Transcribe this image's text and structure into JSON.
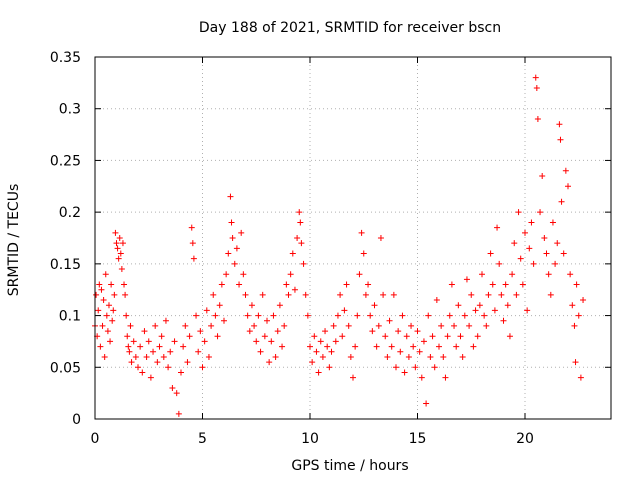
{
  "chart_data": {
    "type": "scatter",
    "title": "Day 188 of 2021, SRMTID for receiver bscn",
    "xlabel": "GPS time / hours",
    "ylabel": "SRMTID / TECUs",
    "xlim": [
      0,
      24
    ],
    "ylim": [
      0,
      0.35
    ],
    "x_ticks": [
      0,
      5,
      10,
      15,
      20
    ],
    "x_tick_labels": [
      "0",
      "5",
      "10",
      "15",
      "20"
    ],
    "y_ticks": [
      0,
      0.05,
      0.1,
      0.15,
      0.2,
      0.25,
      0.3,
      0.35
    ],
    "y_tick_labels": [
      "0",
      "0.05",
      "0.1",
      "0.15",
      "0.2",
      "0.25",
      "0.3",
      "0.35"
    ],
    "grid": true,
    "marker": "+",
    "color": "#ff0000",
    "points": [
      [
        0.0,
        0.09
      ],
      [
        0.05,
        0.12
      ],
      [
        0.1,
        0.08
      ],
      [
        0.15,
        0.105
      ],
      [
        0.2,
        0.13
      ],
      [
        0.25,
        0.07
      ],
      [
        0.3,
        0.125
      ],
      [
        0.35,
        0.09
      ],
      [
        0.4,
        0.115
      ],
      [
        0.45,
        0.06
      ],
      [
        0.5,
        0.14
      ],
      [
        0.55,
        0.1
      ],
      [
        0.6,
        0.085
      ],
      [
        0.65,
        0.11
      ],
      [
        0.7,
        0.075
      ],
      [
        0.75,
        0.13
      ],
      [
        0.8,
        0.095
      ],
      [
        0.85,
        0.105
      ],
      [
        0.9,
        0.12
      ],
      [
        0.95,
        0.18
      ],
      [
        1.0,
        0.17
      ],
      [
        1.05,
        0.165
      ],
      [
        1.1,
        0.155
      ],
      [
        1.15,
        0.175
      ],
      [
        1.2,
        0.16
      ],
      [
        1.25,
        0.145
      ],
      [
        1.3,
        0.17
      ],
      [
        1.35,
        0.13
      ],
      [
        1.4,
        0.12
      ],
      [
        1.45,
        0.1
      ],
      [
        1.5,
        0.08
      ],
      [
        1.55,
        0.07
      ],
      [
        1.6,
        0.065
      ],
      [
        1.65,
        0.09
      ],
      [
        1.7,
        0.055
      ],
      [
        1.8,
        0.075
      ],
      [
        1.9,
        0.06
      ],
      [
        2.0,
        0.05
      ],
      [
        2.1,
        0.07
      ],
      [
        2.2,
        0.045
      ],
      [
        2.3,
        0.085
      ],
      [
        2.4,
        0.06
      ],
      [
        2.5,
        0.075
      ],
      [
        2.6,
        0.04
      ],
      [
        2.7,
        0.065
      ],
      [
        2.8,
        0.09
      ],
      [
        2.9,
        0.055
      ],
      [
        3.0,
        0.07
      ],
      [
        3.1,
        0.08
      ],
      [
        3.2,
        0.06
      ],
      [
        3.3,
        0.095
      ],
      [
        3.4,
        0.05
      ],
      [
        3.5,
        0.065
      ],
      [
        3.6,
        0.03
      ],
      [
        3.7,
        0.075
      ],
      [
        3.8,
        0.025
      ],
      [
        3.9,
        0.005
      ],
      [
        4.0,
        0.045
      ],
      [
        4.1,
        0.07
      ],
      [
        4.2,
        0.09
      ],
      [
        4.3,
        0.055
      ],
      [
        4.4,
        0.08
      ],
      [
        4.5,
        0.185
      ],
      [
        4.55,
        0.17
      ],
      [
        4.6,
        0.155
      ],
      [
        4.7,
        0.1
      ],
      [
        4.8,
        0.065
      ],
      [
        4.9,
        0.085
      ],
      [
        5.0,
        0.05
      ],
      [
        5.1,
        0.075
      ],
      [
        5.2,
        0.105
      ],
      [
        5.3,
        0.06
      ],
      [
        5.4,
        0.09
      ],
      [
        5.5,
        0.12
      ],
      [
        5.6,
        0.1
      ],
      [
        5.7,
        0.08
      ],
      [
        5.8,
        0.11
      ],
      [
        5.9,
        0.13
      ],
      [
        6.0,
        0.095
      ],
      [
        6.1,
        0.14
      ],
      [
        6.2,
        0.16
      ],
      [
        6.3,
        0.215
      ],
      [
        6.35,
        0.19
      ],
      [
        6.4,
        0.175
      ],
      [
        6.5,
        0.15
      ],
      [
        6.6,
        0.165
      ],
      [
        6.7,
        0.13
      ],
      [
        6.8,
        0.18
      ],
      [
        6.9,
        0.14
      ],
      [
        7.0,
        0.12
      ],
      [
        7.1,
        0.1
      ],
      [
        7.2,
        0.085
      ],
      [
        7.3,
        0.11
      ],
      [
        7.4,
        0.09
      ],
      [
        7.5,
        0.075
      ],
      [
        7.6,
        0.1
      ],
      [
        7.7,
        0.065
      ],
      [
        7.8,
        0.12
      ],
      [
        7.9,
        0.08
      ],
      [
        8.0,
        0.095
      ],
      [
        8.1,
        0.055
      ],
      [
        8.2,
        0.075
      ],
      [
        8.3,
        0.1
      ],
      [
        8.4,
        0.06
      ],
      [
        8.5,
        0.085
      ],
      [
        8.6,
        0.11
      ],
      [
        8.7,
        0.07
      ],
      [
        8.8,
        0.09
      ],
      [
        8.9,
        0.13
      ],
      [
        9.0,
        0.12
      ],
      [
        9.1,
        0.14
      ],
      [
        9.2,
        0.16
      ],
      [
        9.3,
        0.125
      ],
      [
        9.4,
        0.175
      ],
      [
        9.5,
        0.2
      ],
      [
        9.55,
        0.19
      ],
      [
        9.6,
        0.17
      ],
      [
        9.7,
        0.15
      ],
      [
        9.8,
        0.12
      ],
      [
        9.9,
        0.1
      ],
      [
        10.0,
        0.07
      ],
      [
        10.1,
        0.055
      ],
      [
        10.2,
        0.08
      ],
      [
        10.3,
        0.065
      ],
      [
        10.4,
        0.045
      ],
      [
        10.5,
        0.075
      ],
      [
        10.6,
        0.06
      ],
      [
        10.7,
        0.085
      ],
      [
        10.8,
        0.07
      ],
      [
        10.9,
        0.05
      ],
      [
        11.0,
        0.065
      ],
      [
        11.1,
        0.09
      ],
      [
        11.2,
        0.075
      ],
      [
        11.3,
        0.1
      ],
      [
        11.4,
        0.12
      ],
      [
        11.5,
        0.08
      ],
      [
        11.6,
        0.105
      ],
      [
        11.7,
        0.13
      ],
      [
        11.8,
        0.09
      ],
      [
        11.9,
        0.06
      ],
      [
        12.0,
        0.04
      ],
      [
        12.1,
        0.07
      ],
      [
        12.2,
        0.1
      ],
      [
        12.3,
        0.14
      ],
      [
        12.4,
        0.18
      ],
      [
        12.5,
        0.16
      ],
      [
        12.6,
        0.12
      ],
      [
        12.7,
        0.13
      ],
      [
        12.8,
        0.1
      ],
      [
        12.9,
        0.085
      ],
      [
        13.0,
        0.11
      ],
      [
        13.1,
        0.07
      ],
      [
        13.2,
        0.09
      ],
      [
        13.3,
        0.175
      ],
      [
        13.4,
        0.12
      ],
      [
        13.5,
        0.08
      ],
      [
        13.6,
        0.06
      ],
      [
        13.7,
        0.095
      ],
      [
        13.8,
        0.07
      ],
      [
        13.9,
        0.12
      ],
      [
        14.0,
        0.05
      ],
      [
        14.1,
        0.085
      ],
      [
        14.2,
        0.065
      ],
      [
        14.3,
        0.1
      ],
      [
        14.4,
        0.045
      ],
      [
        14.5,
        0.08
      ],
      [
        14.6,
        0.06
      ],
      [
        14.7,
        0.09
      ],
      [
        14.8,
        0.07
      ],
      [
        14.9,
        0.05
      ],
      [
        15.0,
        0.085
      ],
      [
        15.1,
        0.065
      ],
      [
        15.2,
        0.04
      ],
      [
        15.3,
        0.075
      ],
      [
        15.4,
        0.015
      ],
      [
        15.5,
        0.1
      ],
      [
        15.6,
        0.06
      ],
      [
        15.7,
        0.08
      ],
      [
        15.8,
        0.05
      ],
      [
        15.9,
        0.115
      ],
      [
        16.0,
        0.07
      ],
      [
        16.1,
        0.09
      ],
      [
        16.2,
        0.06
      ],
      [
        16.3,
        0.04
      ],
      [
        16.4,
        0.08
      ],
      [
        16.5,
        0.1
      ],
      [
        16.6,
        0.13
      ],
      [
        16.7,
        0.09
      ],
      [
        16.8,
        0.07
      ],
      [
        16.9,
        0.11
      ],
      [
        17.0,
        0.08
      ],
      [
        17.1,
        0.06
      ],
      [
        17.2,
        0.1
      ],
      [
        17.3,
        0.135
      ],
      [
        17.4,
        0.09
      ],
      [
        17.5,
        0.12
      ],
      [
        17.6,
        0.07
      ],
      [
        17.7,
        0.105
      ],
      [
        17.8,
        0.08
      ],
      [
        17.9,
        0.11
      ],
      [
        18.0,
        0.14
      ],
      [
        18.1,
        0.1
      ],
      [
        18.2,
        0.09
      ],
      [
        18.3,
        0.12
      ],
      [
        18.4,
        0.16
      ],
      [
        18.5,
        0.13
      ],
      [
        18.6,
        0.105
      ],
      [
        18.7,
        0.185
      ],
      [
        18.8,
        0.15
      ],
      [
        18.9,
        0.12
      ],
      [
        19.0,
        0.095
      ],
      [
        19.1,
        0.13
      ],
      [
        19.2,
        0.11
      ],
      [
        19.3,
        0.08
      ],
      [
        19.4,
        0.14
      ],
      [
        19.5,
        0.17
      ],
      [
        19.6,
        0.12
      ],
      [
        19.7,
        0.2
      ],
      [
        19.8,
        0.155
      ],
      [
        19.9,
        0.13
      ],
      [
        20.0,
        0.18
      ],
      [
        20.1,
        0.105
      ],
      [
        20.2,
        0.165
      ],
      [
        20.3,
        0.19
      ],
      [
        20.4,
        0.15
      ],
      [
        20.5,
        0.33
      ],
      [
        20.55,
        0.32
      ],
      [
        20.6,
        0.29
      ],
      [
        20.7,
        0.2
      ],
      [
        20.8,
        0.235
      ],
      [
        20.9,
        0.175
      ],
      [
        21.0,
        0.16
      ],
      [
        21.1,
        0.14
      ],
      [
        21.2,
        0.12
      ],
      [
        21.3,
        0.19
      ],
      [
        21.4,
        0.15
      ],
      [
        21.5,
        0.17
      ],
      [
        21.6,
        0.285
      ],
      [
        21.65,
        0.27
      ],
      [
        21.7,
        0.21
      ],
      [
        21.8,
        0.16
      ],
      [
        21.9,
        0.24
      ],
      [
        22.0,
        0.225
      ],
      [
        22.1,
        0.14
      ],
      [
        22.2,
        0.11
      ],
      [
        22.3,
        0.09
      ],
      [
        22.35,
        0.055
      ],
      [
        22.4,
        0.13
      ],
      [
        22.5,
        0.1
      ],
      [
        22.6,
        0.04
      ],
      [
        22.7,
        0.115
      ]
    ]
  }
}
